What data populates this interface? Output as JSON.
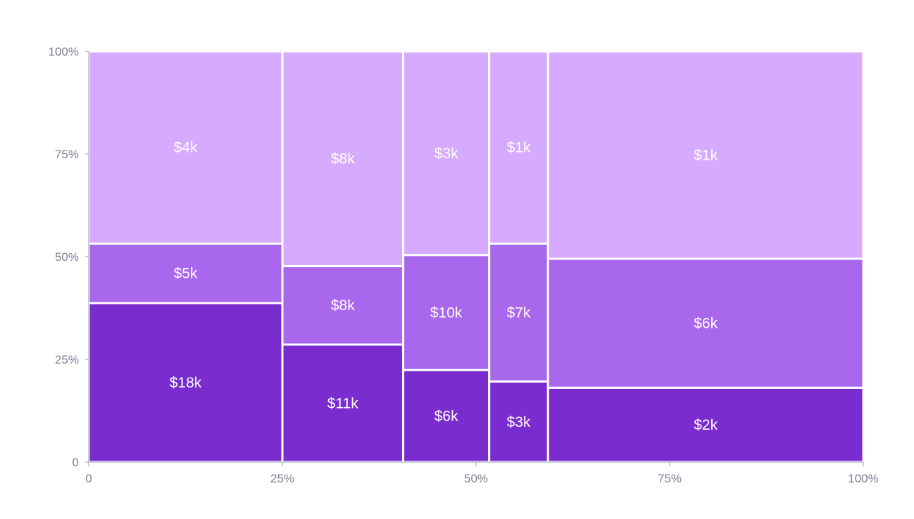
{
  "chart_data": {
    "type": "marimekko",
    "title": "",
    "xlabel": "",
    "ylabel": "",
    "x_ticks": [
      "0",
      "25%",
      "50%",
      "75%",
      "100%"
    ],
    "y_ticks": [
      "0",
      "25%",
      "50%",
      "75%",
      "100%"
    ],
    "xlim": [
      0,
      100
    ],
    "ylim": [
      0,
      100
    ],
    "grid": false,
    "legend": "none",
    "colors": [
      "#7b2ccf",
      "#a967ee",
      "#d6abff"
    ],
    "columns": [
      {
        "width_pct": 25.0,
        "segments": [
          {
            "level": 0,
            "share_pct": 38.7,
            "label": "$18k"
          },
          {
            "level": 1,
            "share_pct": 14.5,
            "label": "$5k"
          },
          {
            "level": 2,
            "share_pct": 46.8,
            "label": "$4k"
          }
        ]
      },
      {
        "width_pct": 15.6,
        "segments": [
          {
            "level": 0,
            "share_pct": 28.6,
            "label": "$11k"
          },
          {
            "level": 1,
            "share_pct": 19.1,
            "label": "$8k"
          },
          {
            "level": 2,
            "share_pct": 52.3,
            "label": "$8k"
          }
        ]
      },
      {
        "width_pct": 11.1,
        "segments": [
          {
            "level": 0,
            "share_pct": 22.4,
            "label": "$6k"
          },
          {
            "level": 1,
            "share_pct": 28.0,
            "label": "$10k"
          },
          {
            "level": 2,
            "share_pct": 49.6,
            "label": "$3k"
          }
        ]
      },
      {
        "width_pct": 7.6,
        "segments": [
          {
            "level": 0,
            "share_pct": 19.6,
            "label": "$3k"
          },
          {
            "level": 1,
            "share_pct": 33.6,
            "label": "$7k"
          },
          {
            "level": 2,
            "share_pct": 46.8,
            "label": "$1k"
          }
        ]
      },
      {
        "width_pct": 40.7,
        "segments": [
          {
            "level": 0,
            "share_pct": 18.1,
            "label": "$2k"
          },
          {
            "level": 1,
            "share_pct": 31.4,
            "label": "$6k"
          },
          {
            "level": 2,
            "share_pct": 50.5,
            "label": "$1k"
          }
        ]
      }
    ]
  }
}
